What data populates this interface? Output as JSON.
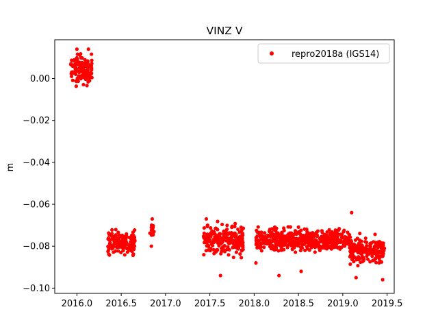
{
  "chart_data": {
    "type": "scatter",
    "title": "VINZ V",
    "xlabel": "",
    "ylabel": "m",
    "xlim": [
      2015.75,
      2019.58
    ],
    "ylim": [
      -0.1025,
      0.0185
    ],
    "xticks": [
      2016.0,
      2016.5,
      2017.0,
      2017.5,
      2018.0,
      2018.5,
      2019.0,
      2019.5
    ],
    "xtick_labels": [
      "2016.0",
      "2016.5",
      "2017.0",
      "2017.5",
      "2018.0",
      "2018.5",
      "2019.0",
      "2019.5"
    ],
    "yticks": [
      0.0,
      -0.02,
      -0.04,
      -0.06,
      -0.08,
      -0.1
    ],
    "ytick_labels": [
      "0.00",
      "−0.02",
      "−0.04",
      "−0.06",
      "−0.08",
      "−0.10"
    ],
    "grid": false,
    "legend_position": "top-right",
    "series": [
      {
        "name": "repro2018a (IGS14)",
        "color": "#ff0000",
        "marker": "circle",
        "clusters": [
          {
            "x_range": [
              2015.93,
              2016.17
            ],
            "y_center": 0.004,
            "y_spread": 0.006,
            "count": 130
          },
          {
            "x_range": [
              2016.35,
              2016.66
            ],
            "y_center": -0.078,
            "y_spread": 0.005,
            "count": 140
          },
          {
            "x_range": [
              2016.82,
              2016.87
            ],
            "y_center": -0.073,
            "y_spread": 0.004,
            "count": 14
          },
          {
            "x_range": [
              2017.43,
              2017.88
            ],
            "y_center": -0.077,
            "y_spread": 0.006,
            "count": 220
          },
          {
            "x_range": [
              2018.02,
              2018.93
            ],
            "y_center": -0.077,
            "y_spread": 0.0045,
            "count": 460
          },
          {
            "x_range": [
              2018.93,
              2019.08
            ],
            "y_center": -0.077,
            "y_spread": 0.005,
            "count": 60
          },
          {
            "x_range": [
              2019.08,
              2019.47
            ],
            "y_center": -0.082,
            "y_spread": 0.005,
            "count": 190
          }
        ],
        "outliers": [
          {
            "x": 2017.62,
            "y": -0.094
          },
          {
            "x": 2018.28,
            "y": -0.094
          },
          {
            "x": 2018.53,
            "y": -0.092
          },
          {
            "x": 2019.1,
            "y": -0.064
          },
          {
            "x": 2019.15,
            "y": -0.095
          },
          {
            "x": 2019.45,
            "y": -0.096
          },
          {
            "x": 2016.0,
            "y": 0.014
          },
          {
            "x": 2016.13,
            "y": 0.014
          },
          {
            "x": 2017.46,
            "y": -0.067
          },
          {
            "x": 2016.85,
            "y": -0.067
          },
          {
            "x": 2016.84,
            "y": -0.08
          },
          {
            "x": 2018.02,
            "y": -0.088
          }
        ]
      }
    ]
  }
}
